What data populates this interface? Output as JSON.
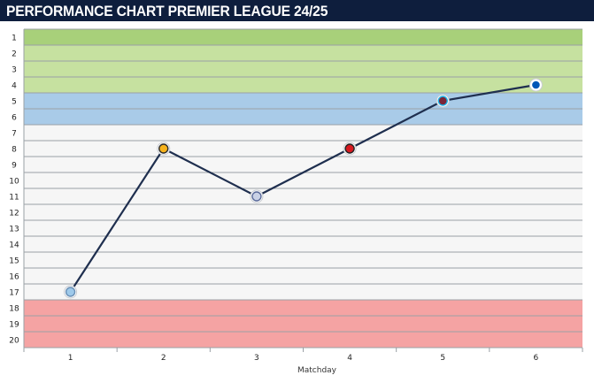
{
  "header": {
    "title": "PERFORMANCE CHART PREMIER LEAGUE 24/25"
  },
  "chart_data": {
    "type": "line",
    "title": "PERFORMANCE CHART PREMIER LEAGUE 24/25",
    "xlabel": "Matchday",
    "ylabel": "",
    "x": [
      1,
      2,
      3,
      4,
      5,
      6
    ],
    "positions": [
      1,
      2,
      3,
      4,
      5,
      6,
      7,
      8,
      9,
      10,
      11,
      12,
      13,
      14,
      15,
      16,
      17,
      18,
      19,
      20
    ],
    "ylim": [
      1,
      20
    ],
    "y_inverted": true,
    "series": [
      {
        "values": [
          17,
          8,
          11,
          8,
          5,
          4
        ],
        "color": "#1f2f4f"
      }
    ],
    "markers": [
      {
        "matchday": 1,
        "position": 17,
        "icon": "manchester-city-crest-icon",
        "fill": "#9ec9ea",
        "stroke": "#6a8fb5"
      },
      {
        "matchday": 2,
        "position": 8,
        "icon": "wolves-crest-icon",
        "fill": "#f6b21b",
        "stroke": "#2b2b2b"
      },
      {
        "matchday": 3,
        "position": 11,
        "icon": "crystal-palace-crest-icon",
        "fill": "#c9d1e6",
        "stroke": "#5a6a9a"
      },
      {
        "matchday": 4,
        "position": 8,
        "icon": "bournemouth-crest-icon",
        "fill": "#d71920",
        "stroke": "#222222"
      },
      {
        "matchday": 5,
        "position": 5,
        "icon": "west-ham-crest-icon",
        "fill": "#7a263a",
        "stroke": "#1bb1e7"
      },
      {
        "matchday": 6,
        "position": 4,
        "icon": "brighton-crest-icon",
        "fill": "#0057b8",
        "stroke": "#ffffff"
      }
    ],
    "zones": [
      {
        "name": "top",
        "from": 1,
        "to": 1,
        "color": "#a8d07a"
      },
      {
        "name": "champions-league",
        "from": 2,
        "to": 4,
        "color": "#c6e1a0"
      },
      {
        "name": "europa",
        "from": 5,
        "to": 6,
        "color": "#a9cbe8"
      },
      {
        "name": "mid",
        "from": 7,
        "to": 17,
        "color": "#f6f6f6"
      },
      {
        "name": "relegation",
        "from": 18,
        "to": 20,
        "color": "#f5a3a3"
      }
    ],
    "grid": true,
    "legend": "none"
  }
}
